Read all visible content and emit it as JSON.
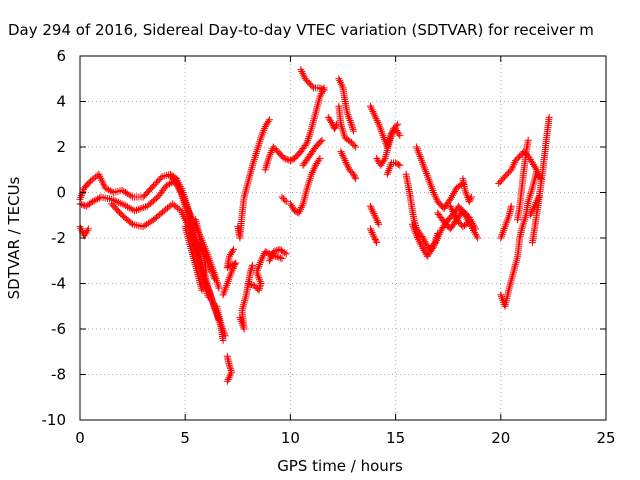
{
  "chart_data": {
    "type": "scatter",
    "title": "Day 294 of 2016, Sidereal Day-to-day VTEC variation (SDTVAR) for receiver m",
    "xlabel": "GPS time / hours",
    "ylabel": "SDTVAR / TECUs",
    "xlim": [
      0,
      25
    ],
    "ylim": [
      -10,
      6
    ],
    "xticks": [
      "0",
      "5",
      "10",
      "15",
      "20",
      "25"
    ],
    "yticks": [
      "-10",
      "-8",
      "-6",
      "-4",
      "-2",
      "0",
      "2",
      "4",
      "6"
    ],
    "grid": true,
    "legend": "none",
    "marker": "+",
    "color": "#ff0000",
    "tracks": [
      [
        [
          0.0,
          -0.3
        ],
        [
          0.2,
          0.2
        ],
        [
          0.5,
          0.5
        ],
        [
          0.9,
          0.8
        ],
        [
          1.2,
          0.2
        ],
        [
          1.6,
          0.0
        ],
        [
          2.0,
          0.1
        ],
        [
          2.5,
          -0.2
        ],
        [
          3.0,
          -0.2
        ],
        [
          3.5,
          0.3
        ],
        [
          3.9,
          0.7
        ],
        [
          4.3,
          0.8
        ],
        [
          4.6,
          0.6
        ],
        [
          4.9,
          0.0
        ],
        [
          5.1,
          -0.6
        ],
        [
          5.3,
          -1.2
        ],
        [
          5.5,
          -2.0
        ],
        [
          5.7,
          -2.8
        ],
        [
          5.9,
          -3.5
        ],
        [
          6.1,
          -4.2
        ],
        [
          6.3,
          -4.8
        ],
        [
          6.5,
          -5.3
        ],
        [
          6.7,
          -5.9
        ],
        [
          6.8,
          -6.5
        ]
      ],
      [
        [
          0.0,
          -0.5
        ],
        [
          0.3,
          -0.6
        ],
        [
          0.6,
          -0.4
        ],
        [
          1.0,
          -0.2
        ],
        [
          1.5,
          -0.3
        ],
        [
          2.0,
          -0.5
        ],
        [
          2.6,
          -0.8
        ],
        [
          3.2,
          -0.6
        ],
        [
          3.7,
          -0.2
        ],
        [
          4.1,
          0.3
        ],
        [
          4.5,
          0.5
        ],
        [
          4.8,
          0.0
        ],
        [
          5.0,
          -0.6
        ],
        [
          5.2,
          -1.3
        ],
        [
          5.4,
          -2.0
        ],
        [
          5.6,
          -2.7
        ],
        [
          5.8,
          -3.4
        ],
        [
          6.0,
          -4.0
        ],
        [
          6.2,
          -4.5
        ],
        [
          6.4,
          -5.1
        ],
        [
          6.6,
          -5.6
        ]
      ],
      [
        [
          0.0,
          -1.5
        ],
        [
          0.2,
          -1.9
        ],
        [
          0.4,
          -1.6
        ]
      ],
      [
        [
          1.5,
          -0.5
        ],
        [
          2.0,
          -1.0
        ],
        [
          2.5,
          -1.4
        ],
        [
          3.0,
          -1.5
        ],
        [
          3.5,
          -1.2
        ],
        [
          4.0,
          -0.8
        ],
        [
          4.4,
          -0.5
        ],
        [
          4.8,
          -0.8
        ],
        [
          5.1,
          -1.4
        ],
        [
          5.4,
          -1.9
        ],
        [
          5.7,
          -2.4
        ],
        [
          6.0,
          -2.9
        ],
        [
          6.2,
          -3.3
        ],
        [
          6.4,
          -3.8
        ]
      ],
      [
        [
          4.3,
          0.7
        ],
        [
          4.6,
          0.4
        ],
        [
          4.9,
          -0.2
        ],
        [
          5.2,
          -0.9
        ],
        [
          5.5,
          -1.5
        ],
        [
          5.8,
          -2.1
        ],
        [
          6.1,
          -2.8
        ],
        [
          6.4,
          -3.6
        ],
        [
          6.6,
          -4.2
        ]
      ],
      [
        [
          5.5,
          -1.2
        ],
        [
          5.7,
          -2.0
        ],
        [
          5.9,
          -2.8
        ],
        [
          6.0,
          -3.5
        ]
      ],
      [
        [
          5.0,
          -1.5
        ],
        [
          5.2,
          -2.2
        ],
        [
          5.4,
          -2.9
        ],
        [
          5.6,
          -3.6
        ],
        [
          5.8,
          -4.3
        ]
      ],
      [
        [
          5.3,
          -1.8
        ],
        [
          5.5,
          -2.5
        ],
        [
          5.7,
          -3.2
        ],
        [
          5.9,
          -4.0
        ],
        [
          6.1,
          -4.6
        ]
      ],
      [
        [
          6.5,
          -5.0
        ],
        [
          6.7,
          -5.8
        ],
        [
          6.9,
          -6.3
        ]
      ],
      [
        [
          7.0,
          -7.2
        ],
        [
          7.1,
          -7.6
        ],
        [
          7.2,
          -7.9
        ],
        [
          7.0,
          -8.3
        ]
      ],
      [
        [
          6.8,
          -4.5
        ],
        [
          7.0,
          -4.0
        ],
        [
          7.2,
          -3.5
        ],
        [
          7.4,
          -3.1
        ],
        [
          7.0,
          -3.3
        ],
        [
          7.1,
          -2.8
        ],
        [
          7.3,
          -2.5
        ]
      ],
      [
        [
          7.6,
          -5.5
        ],
        [
          7.8,
          -6.0
        ],
        [
          7.7,
          -5.2
        ],
        [
          7.9,
          -4.5
        ],
        [
          8.0,
          -4.0
        ],
        [
          8.1,
          -3.5
        ],
        [
          8.2,
          -3.2
        ]
      ],
      [
        [
          7.5,
          -1.5
        ],
        [
          7.6,
          -2.0
        ],
        [
          7.7,
          -1.0
        ],
        [
          7.8,
          -0.2
        ],
        [
          8.0,
          0.5
        ],
        [
          8.2,
          1.2
        ],
        [
          8.4,
          1.8
        ],
        [
          8.6,
          2.4
        ],
        [
          8.8,
          2.9
        ],
        [
          9.0,
          3.2
        ]
      ],
      [
        [
          8.0,
          -4.0
        ],
        [
          8.3,
          -4.1
        ],
        [
          8.5,
          -4.3
        ],
        [
          8.6,
          -4.0
        ],
        [
          8.4,
          -3.5
        ],
        [
          8.6,
          -3.0
        ],
        [
          8.8,
          -2.6
        ],
        [
          9.0,
          -2.7
        ],
        [
          9.3,
          -2.8
        ],
        [
          9.6,
          -2.9
        ]
      ],
      [
        [
          8.8,
          1.0
        ],
        [
          9.0,
          1.6
        ],
        [
          9.2,
          2.0
        ],
        [
          9.4,
          1.8
        ],
        [
          9.7,
          1.5
        ],
        [
          10.0,
          1.4
        ],
        [
          10.2,
          1.5
        ],
        [
          10.5,
          1.8
        ],
        [
          10.8,
          2.2
        ],
        [
          11.0,
          2.8
        ],
        [
          11.2,
          3.5
        ],
        [
          11.4,
          4.2
        ],
        [
          11.6,
          4.6
        ]
      ],
      [
        [
          9.0,
          -3.0
        ],
        [
          9.2,
          -2.6
        ],
        [
          9.5,
          -2.5
        ],
        [
          9.8,
          -2.7
        ]
      ],
      [
        [
          10.0,
          -0.5
        ],
        [
          10.2,
          -0.8
        ],
        [
          10.4,
          -0.9
        ],
        [
          10.6,
          -0.5
        ],
        [
          10.8,
          0.2
        ],
        [
          11.0,
          0.8
        ],
        [
          11.2,
          1.2
        ],
        [
          11.4,
          1.5
        ]
      ],
      [
        [
          9.6,
          -0.2
        ],
        [
          9.8,
          -0.4
        ]
      ],
      [
        [
          10.5,
          5.4
        ],
        [
          10.7,
          5.0
        ],
        [
          10.9,
          4.8
        ],
        [
          11.1,
          4.6
        ],
        [
          11.4,
          4.6
        ],
        [
          11.6,
          4.5
        ]
      ],
      [
        [
          10.6,
          1.2
        ],
        [
          10.9,
          1.6
        ],
        [
          11.2,
          2.0
        ],
        [
          11.5,
          2.3
        ]
      ],
      [
        [
          11.8,
          3.3
        ],
        [
          12.0,
          3.0
        ],
        [
          12.1,
          2.8
        ],
        [
          12.2,
          3.0
        ]
      ],
      [
        [
          12.3,
          5.0
        ],
        [
          12.5,
          4.6
        ],
        [
          12.6,
          4.0
        ],
        [
          12.7,
          3.5
        ],
        [
          12.9,
          3.0
        ],
        [
          13.0,
          2.7
        ]
      ],
      [
        [
          12.3,
          3.8
        ],
        [
          12.4,
          3.0
        ],
        [
          12.6,
          2.4
        ],
        [
          12.9,
          2.2
        ],
        [
          13.1,
          2.0
        ]
      ],
      [
        [
          12.4,
          1.8
        ],
        [
          12.6,
          1.4
        ],
        [
          12.8,
          1.0
        ],
        [
          13.0,
          0.8
        ],
        [
          13.1,
          0.6
        ]
      ],
      [
        [
          13.8,
          3.8
        ],
        [
          14.0,
          3.4
        ],
        [
          14.2,
          3.0
        ],
        [
          14.4,
          2.5
        ],
        [
          14.6,
          2.0
        ],
        [
          14.8,
          2.6
        ],
        [
          15.0,
          2.8
        ],
        [
          15.2,
          2.5
        ]
      ],
      [
        [
          13.8,
          -0.6
        ],
        [
          14.0,
          -1.0
        ],
        [
          14.2,
          -1.4
        ]
      ],
      [
        [
          13.8,
          -1.6
        ],
        [
          14.0,
          -2.0
        ],
        [
          14.1,
          -2.2
        ]
      ],
      [
        [
          14.1,
          1.5
        ],
        [
          14.3,
          1.2
        ],
        [
          14.5,
          1.5
        ],
        [
          14.7,
          2.2
        ],
        [
          14.9,
          2.8
        ],
        [
          15.1,
          3.0
        ]
      ],
      [
        [
          14.6,
          0.8
        ],
        [
          14.8,
          1.3
        ],
        [
          15.0,
          1.3
        ],
        [
          15.2,
          1.2
        ]
      ],
      [
        [
          15.5,
          0.8
        ],
        [
          15.6,
          0.3
        ],
        [
          15.7,
          -0.2
        ],
        [
          15.8,
          -0.8
        ],
        [
          15.9,
          -1.3
        ],
        [
          16.0,
          -1.6
        ],
        [
          16.3,
          -2.0
        ],
        [
          16.6,
          -2.5
        ],
        [
          16.9,
          -2.2
        ],
        [
          17.2,
          -1.6
        ],
        [
          17.5,
          -1.2
        ],
        [
          17.8,
          -0.9
        ],
        [
          18.0,
          -0.6
        ],
        [
          18.3,
          -1.0
        ],
        [
          18.6,
          -1.5
        ],
        [
          18.9,
          -2.0
        ]
      ],
      [
        [
          15.8,
          -1.4
        ],
        [
          16.0,
          -1.9
        ],
        [
          16.2,
          -2.3
        ],
        [
          16.5,
          -2.8
        ],
        [
          16.8,
          -2.4
        ],
        [
          17.0,
          -1.8
        ]
      ],
      [
        [
          16.0,
          2.0
        ],
        [
          16.2,
          1.5
        ],
        [
          16.4,
          1.0
        ],
        [
          16.6,
          0.5
        ],
        [
          16.8,
          0.0
        ],
        [
          17.0,
          -0.4
        ],
        [
          17.3,
          -0.7
        ],
        [
          17.6,
          -0.3
        ],
        [
          17.9,
          0.2
        ],
        [
          18.2,
          0.4
        ]
      ],
      [
        [
          17.0,
          -0.9
        ],
        [
          17.3,
          -1.3
        ],
        [
          17.6,
          -1.6
        ],
        [
          17.9,
          -1.2
        ],
        [
          18.2,
          -0.8
        ],
        [
          18.5,
          -1.1
        ],
        [
          18.8,
          -1.6
        ]
      ],
      [
        [
          17.6,
          -0.6
        ],
        [
          17.8,
          -1.0
        ],
        [
          18.0,
          -1.3
        ],
        [
          18.2,
          -1.5
        ],
        [
          18.5,
          -1.3
        ]
      ],
      [
        [
          18.2,
          0.6
        ],
        [
          18.3,
          0.1
        ],
        [
          18.5,
          -0.4
        ],
        [
          18.6,
          -0.2
        ]
      ],
      [
        [
          20.0,
          -4.5
        ],
        [
          20.2,
          -5.0
        ],
        [
          20.4,
          -4.2
        ],
        [
          20.6,
          -3.5
        ],
        [
          20.8,
          -2.8
        ],
        [
          20.9,
          -2.0
        ],
        [
          21.0,
          -1.6
        ],
        [
          21.2,
          -1.0
        ],
        [
          21.3,
          -0.4
        ],
        [
          21.5,
          0.2
        ],
        [
          21.7,
          0.9
        ]
      ],
      [
        [
          20.0,
          -2.0
        ],
        [
          20.2,
          -1.5
        ],
        [
          20.4,
          -1.0
        ],
        [
          20.5,
          -0.6
        ]
      ],
      [
        [
          19.9,
          0.4
        ],
        [
          20.1,
          0.6
        ],
        [
          20.3,
          0.8
        ],
        [
          20.5,
          1.0
        ],
        [
          20.7,
          1.4
        ],
        [
          20.9,
          1.6
        ],
        [
          21.1,
          1.8
        ],
        [
          21.3,
          1.6
        ],
        [
          21.5,
          1.3
        ],
        [
          21.7,
          1.0
        ],
        [
          21.9,
          0.6
        ]
      ],
      [
        [
          20.8,
          -1.2
        ],
        [
          20.9,
          -0.6
        ],
        [
          21.0,
          0.2
        ],
        [
          21.1,
          1.0
        ],
        [
          21.2,
          1.7
        ],
        [
          21.3,
          2.3
        ]
      ],
      [
        [
          21.5,
          -2.2
        ],
        [
          21.6,
          -1.6
        ],
        [
          21.7,
          -1.0
        ],
        [
          21.8,
          -0.4
        ],
        [
          21.9,
          0.3
        ],
        [
          22.0,
          1.0
        ],
        [
          22.1,
          1.8
        ],
        [
          22.2,
          2.6
        ],
        [
          22.3,
          3.3
        ]
      ],
      [
        [
          21.4,
          -1.0
        ],
        [
          21.6,
          -0.6
        ],
        [
          21.8,
          -0.2
        ]
      ]
    ]
  }
}
